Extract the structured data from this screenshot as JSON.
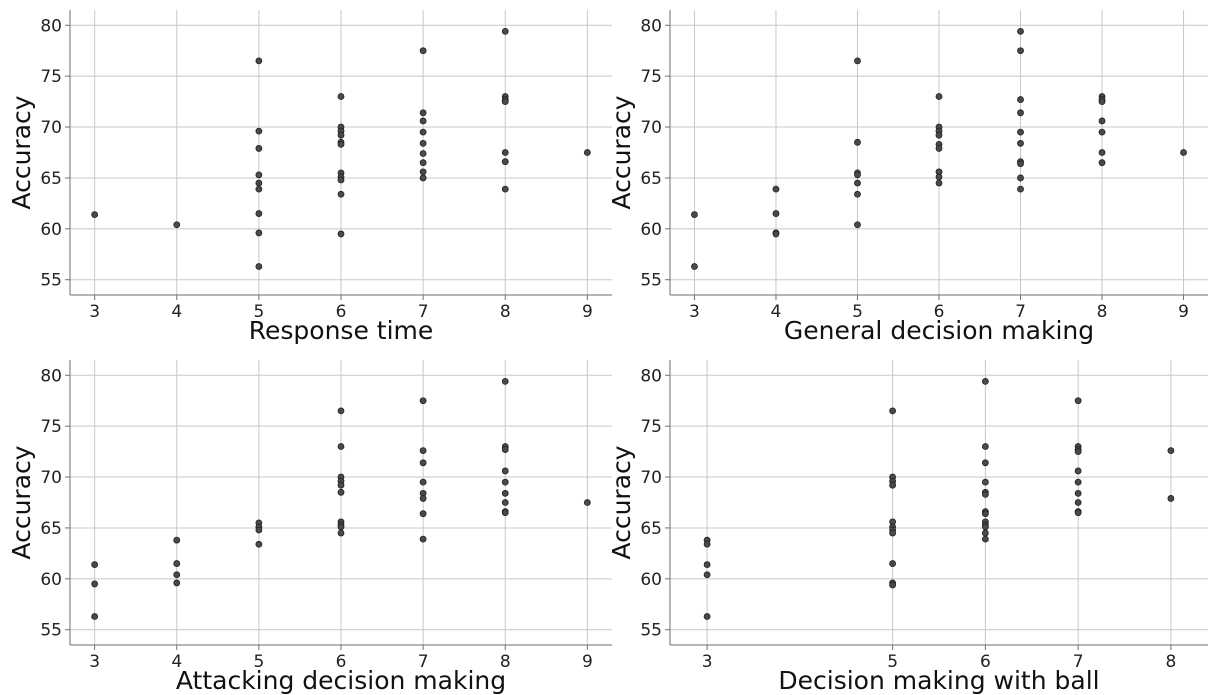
{
  "chart_data": [
    {
      "type": "scatter",
      "xlabel": "Response time",
      "ylabel": "Accuracy",
      "xlim": [
        2.7,
        9.3
      ],
      "ylim": [
        53.5,
        81.5
      ],
      "xticks": [
        3,
        4,
        5,
        6,
        7,
        8,
        9
      ],
      "yticks": [
        55,
        60,
        65,
        70,
        75,
        80
      ],
      "grid": true,
      "points": [
        [
          3,
          61.4
        ],
        [
          4,
          60.4
        ],
        [
          5,
          76.5
        ],
        [
          5,
          69.6
        ],
        [
          5,
          67.9
        ],
        [
          5,
          65.3
        ],
        [
          5,
          64.5
        ],
        [
          5,
          63.9
        ],
        [
          5,
          61.5
        ],
        [
          5,
          59.6
        ],
        [
          5,
          56.3
        ],
        [
          6,
          73.0
        ],
        [
          6,
          70.0
        ],
        [
          6,
          69.6
        ],
        [
          6,
          69.2
        ],
        [
          6,
          68.5
        ],
        [
          6,
          68.3
        ],
        [
          6,
          65.5
        ],
        [
          6,
          65.1
        ],
        [
          6,
          64.8
        ],
        [
          6,
          63.4
        ],
        [
          6,
          59.5
        ],
        [
          7,
          77.5
        ],
        [
          7,
          71.4
        ],
        [
          7,
          70.6
        ],
        [
          7,
          69.5
        ],
        [
          7,
          68.4
        ],
        [
          7,
          67.4
        ],
        [
          7,
          66.5
        ],
        [
          7,
          65.6
        ],
        [
          7,
          65.0
        ],
        [
          8,
          79.4
        ],
        [
          8,
          73.0
        ],
        [
          8,
          72.7
        ],
        [
          8,
          72.5
        ],
        [
          8,
          67.5
        ],
        [
          8,
          66.6
        ],
        [
          8,
          63.9
        ],
        [
          9,
          67.5
        ]
      ]
    },
    {
      "type": "scatter",
      "xlabel": "General decision making",
      "ylabel": "Accuracy",
      "xlim": [
        2.7,
        9.3
      ],
      "ylim": [
        53.5,
        81.5
      ],
      "xticks": [
        3,
        4,
        5,
        6,
        7,
        8,
        9
      ],
      "yticks": [
        55,
        60,
        65,
        70,
        75,
        80
      ],
      "grid": true,
      "points": [
        [
          3,
          61.4
        ],
        [
          3,
          56.3
        ],
        [
          4,
          63.9
        ],
        [
          4,
          61.5
        ],
        [
          4,
          59.6
        ],
        [
          4,
          59.5
        ],
        [
          5,
          76.5
        ],
        [
          5,
          68.5
        ],
        [
          5,
          65.5
        ],
        [
          5,
          65.3
        ],
        [
          5,
          64.5
        ],
        [
          5,
          63.4
        ],
        [
          5,
          60.4
        ],
        [
          6,
          73.0
        ],
        [
          6,
          70.0
        ],
        [
          6,
          69.6
        ],
        [
          6,
          69.2
        ],
        [
          6,
          68.3
        ],
        [
          6,
          67.9
        ],
        [
          6,
          65.6
        ],
        [
          6,
          65.1
        ],
        [
          6,
          64.5
        ],
        [
          7,
          79.4
        ],
        [
          7,
          77.5
        ],
        [
          7,
          72.7
        ],
        [
          7,
          71.4
        ],
        [
          7,
          69.5
        ],
        [
          7,
          68.4
        ],
        [
          7,
          66.6
        ],
        [
          7,
          66.4
        ],
        [
          7,
          65.0
        ],
        [
          7,
          63.9
        ],
        [
          8,
          73.0
        ],
        [
          8,
          72.7
        ],
        [
          8,
          72.5
        ],
        [
          8,
          70.6
        ],
        [
          8,
          69.5
        ],
        [
          8,
          67.5
        ],
        [
          8,
          66.5
        ],
        [
          9,
          67.5
        ]
      ]
    },
    {
      "type": "scatter",
      "xlabel": "Attacking decision making",
      "ylabel": "Accuracy",
      "xlim": [
        2.7,
        9.3
      ],
      "ylim": [
        53.5,
        81.5
      ],
      "xticks": [
        3,
        4,
        5,
        6,
        7,
        8,
        9
      ],
      "yticks": [
        55,
        60,
        65,
        70,
        75,
        80
      ],
      "grid": true,
      "points": [
        [
          3,
          61.4
        ],
        [
          3,
          59.5
        ],
        [
          3,
          56.3
        ],
        [
          4,
          63.8
        ],
        [
          4,
          61.5
        ],
        [
          4,
          60.4
        ],
        [
          4,
          59.6
        ],
        [
          5,
          65.5
        ],
        [
          5,
          65.1
        ],
        [
          5,
          64.8
        ],
        [
          5,
          63.4
        ],
        [
          6,
          76.5
        ],
        [
          6,
          73.0
        ],
        [
          6,
          70.0
        ],
        [
          6,
          69.6
        ],
        [
          6,
          69.2
        ],
        [
          6,
          68.5
        ],
        [
          6,
          65.6
        ],
        [
          6,
          65.3
        ],
        [
          6,
          65.1
        ],
        [
          6,
          64.5
        ],
        [
          7,
          77.5
        ],
        [
          7,
          72.6
        ],
        [
          7,
          71.4
        ],
        [
          7,
          69.5
        ],
        [
          7,
          68.4
        ],
        [
          7,
          67.9
        ],
        [
          7,
          66.4
        ],
        [
          7,
          63.9
        ],
        [
          8,
          79.4
        ],
        [
          8,
          73.0
        ],
        [
          8,
          72.7
        ],
        [
          8,
          70.6
        ],
        [
          8,
          69.5
        ],
        [
          8,
          68.4
        ],
        [
          8,
          67.5
        ],
        [
          8,
          66.6
        ],
        [
          8,
          66.5
        ],
        [
          9,
          67.5
        ]
      ]
    },
    {
      "type": "scatter",
      "xlabel": "Decision making with ball",
      "ylabel": "Accuracy",
      "xlim": [
        2.6,
        8.4
      ],
      "ylim": [
        53.5,
        81.5
      ],
      "xticks": [
        3,
        5,
        6,
        7,
        8
      ],
      "yticks": [
        55,
        60,
        65,
        70,
        75,
        80
      ],
      "grid": true,
      "points": [
        [
          3,
          63.8
        ],
        [
          3,
          63.4
        ],
        [
          3,
          61.4
        ],
        [
          3,
          60.4
        ],
        [
          3,
          56.3
        ],
        [
          5,
          76.5
        ],
        [
          5,
          70.0
        ],
        [
          5,
          69.6
        ],
        [
          5,
          69.2
        ],
        [
          5,
          65.6
        ],
        [
          5,
          65.1
        ],
        [
          5,
          64.8
        ],
        [
          5,
          64.5
        ],
        [
          5,
          61.5
        ],
        [
          5,
          59.6
        ],
        [
          5,
          59.4
        ],
        [
          6,
          79.4
        ],
        [
          6,
          73.0
        ],
        [
          6,
          71.4
        ],
        [
          6,
          69.5
        ],
        [
          6,
          68.5
        ],
        [
          6,
          68.3
        ],
        [
          6,
          66.6
        ],
        [
          6,
          66.4
        ],
        [
          6,
          65.6
        ],
        [
          6,
          65.3
        ],
        [
          6,
          65.1
        ],
        [
          6,
          64.5
        ],
        [
          6,
          63.9
        ],
        [
          7,
          77.5
        ],
        [
          7,
          73.0
        ],
        [
          7,
          72.7
        ],
        [
          7,
          72.5
        ],
        [
          7,
          70.6
        ],
        [
          7,
          69.5
        ],
        [
          7,
          68.4
        ],
        [
          7,
          67.5
        ],
        [
          7,
          66.6
        ],
        [
          7,
          66.5
        ],
        [
          8,
          72.6
        ],
        [
          8,
          67.9
        ]
      ]
    }
  ]
}
